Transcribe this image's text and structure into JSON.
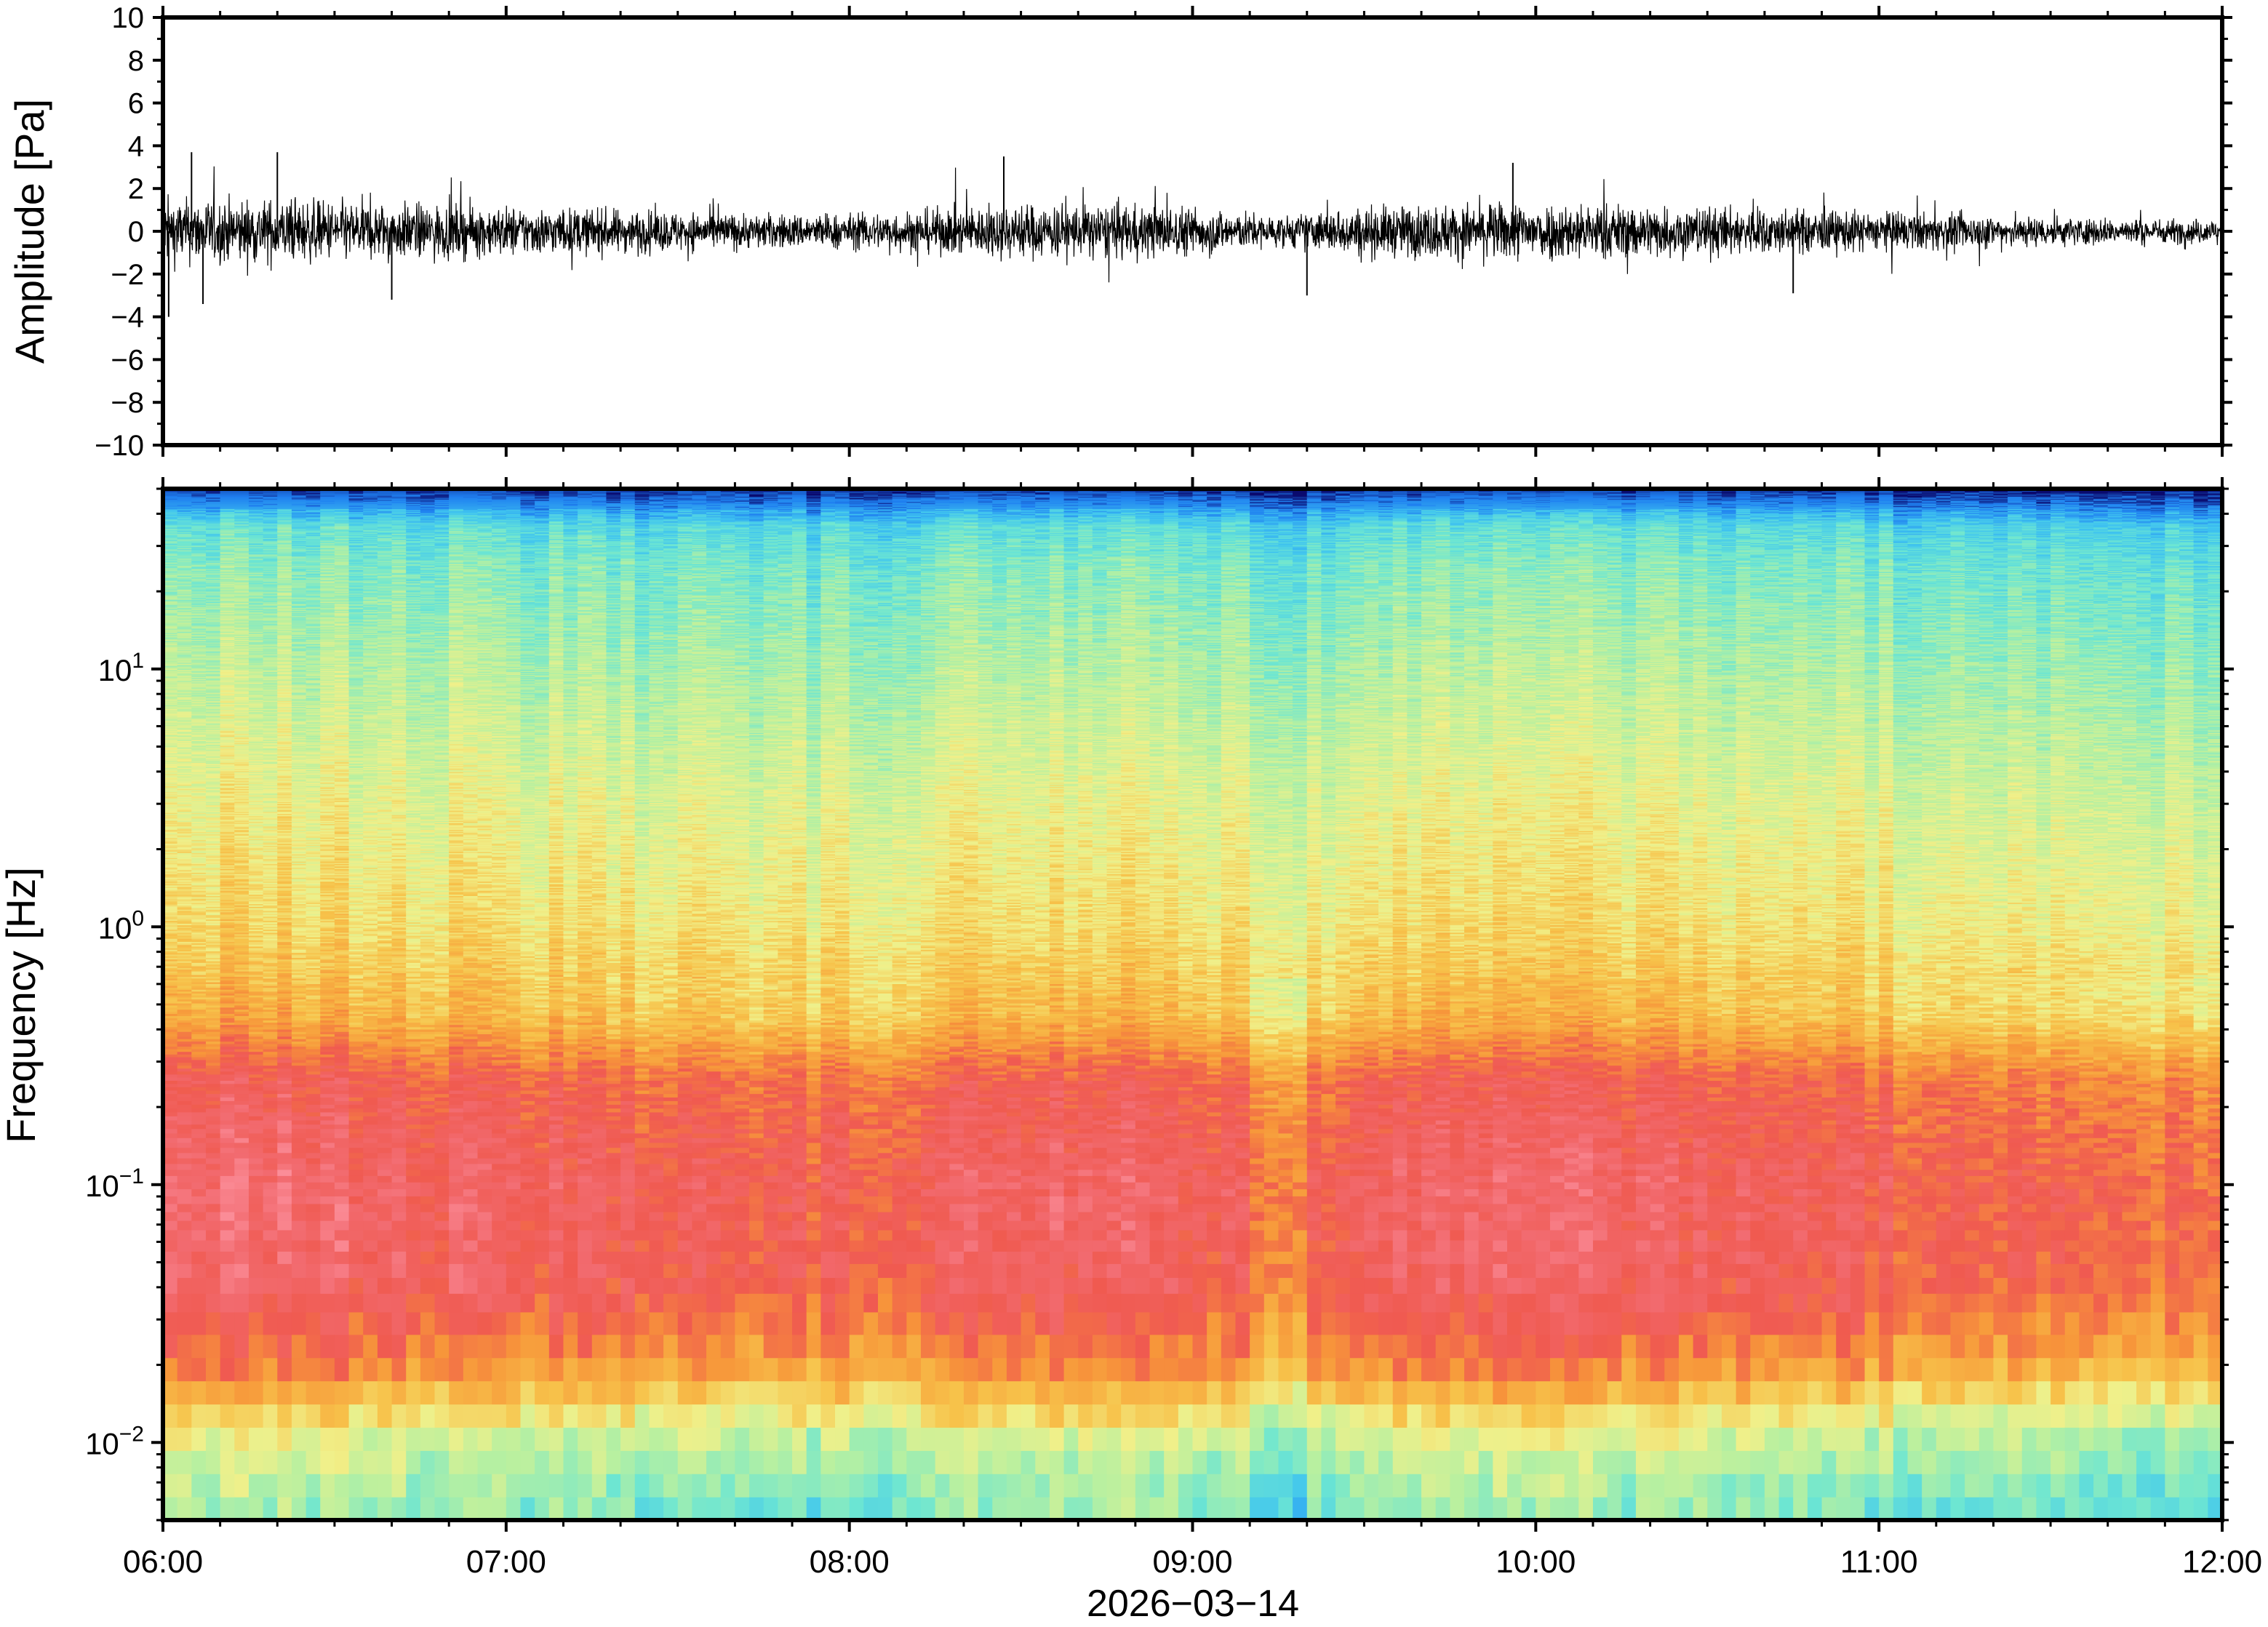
{
  "chart_data": [
    {
      "type": "line",
      "panel": "waveform",
      "title": "",
      "ylabel": "Amplitude [Pa]",
      "xlabel": "",
      "ylim": [
        -10,
        10
      ],
      "y_ticks": [
        -10,
        -8,
        -6,
        -4,
        -2,
        0,
        2,
        4,
        6,
        8,
        10
      ],
      "y_tick_labels": [
        "−10",
        "−8",
        "−6",
        "−4",
        "−2",
        "0",
        "2",
        "4",
        "6",
        "8",
        "10"
      ],
      "x_range": [
        "06:00",
        "12:00"
      ],
      "envelope": {
        "times": [
          "06:00",
          "06:15",
          "06:30",
          "06:45",
          "07:00",
          "07:15",
          "07:30",
          "07:45",
          "08:00",
          "08:15",
          "08:30",
          "08:45",
          "09:00",
          "09:15",
          "09:30",
          "09:45",
          "10:00",
          "10:15",
          "10:30",
          "10:45",
          "11:00",
          "11:15",
          "11:30",
          "11:45",
          "12:00"
        ],
        "half_range_pa": [
          1.3,
          1.3,
          1.2,
          1.1,
          1.0,
          0.9,
          0.8,
          0.7,
          0.7,
          0.9,
          1.1,
          1.1,
          1.0,
          0.6,
          1.0,
          1.1,
          1.2,
          1.1,
          1.0,
          0.9,
          0.8,
          0.7,
          0.6,
          0.5,
          0.5
        ]
      },
      "spikes": [
        {
          "time": "06:01",
          "value": -4.0
        },
        {
          "time": "06:05",
          "value": 3.7
        },
        {
          "time": "06:07",
          "value": -3.4
        },
        {
          "time": "06:20",
          "value": 3.7
        },
        {
          "time": "06:40",
          "value": -3.2
        },
        {
          "time": "08:27",
          "value": 3.5
        },
        {
          "time": "09:20",
          "value": -3.0
        },
        {
          "time": "09:56",
          "value": 3.2
        },
        {
          "time": "10:45",
          "value": -2.9
        }
      ]
    },
    {
      "type": "heatmap",
      "panel": "spectrogram",
      "title": "",
      "ylabel": "Frequency [Hz]",
      "xlabel": "2026−03−14",
      "y_scale": "log",
      "ylim": [
        0.005,
        50
      ],
      "y_ticks": [
        0.01,
        0.1,
        1,
        10
      ],
      "y_tick_labels": [
        {
          "base": "10",
          "exp": "−2"
        },
        {
          "base": "10",
          "exp": "−1"
        },
        {
          "base": "10",
          "exp": "0"
        },
        {
          "base": "10",
          "exp": "1"
        }
      ],
      "x_ticks": [
        "06:00",
        "07:00",
        "08:00",
        "09:00",
        "10:00",
        "11:00",
        "12:00"
      ],
      "x_range": [
        "06:00",
        "12:00"
      ],
      "colormap": "rainbow (blue = low power, red = high power)",
      "colors": [
        "#0a0a6e",
        "#1f7ff0",
        "#3fc4f0",
        "#6de6d2",
        "#b8f0a0",
        "#f0f08a",
        "#f7c24a",
        "#f7963a",
        "#f05a50",
        "#f26b70",
        "#ff9aa8"
      ],
      "features": {
        "peak_energy_band_hz": [
          0.02,
          0.3
        ],
        "low_energy_top_band_hz": [
          20,
          50
        ],
        "quiet_column_time": "09:15"
      }
    }
  ]
}
